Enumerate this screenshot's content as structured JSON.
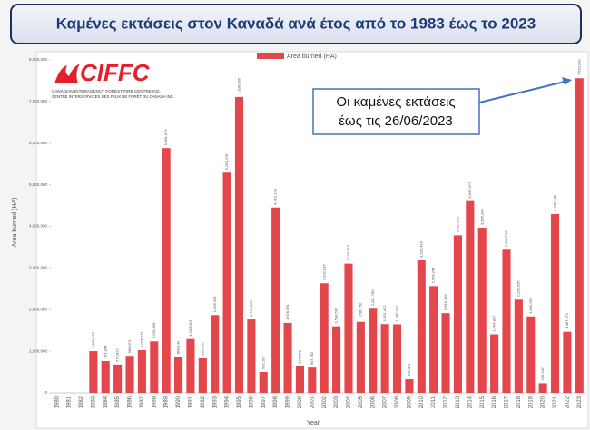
{
  "slide_title": "Καμένες εκτάσεις στον Καναδά ανά έτος από το 1983 έως το 2023",
  "logo": {
    "name": "CIFFC",
    "line1": "CANADIAN INTERAGENCY FOREST FIRE CENTRE INC.",
    "line2": "CENTRE INTERSERVICES DES FEUX DE FORÊT DU CANADA INC."
  },
  "chart_data": {
    "type": "bar",
    "legend": "Area burned (HA)",
    "y_label": "Area burned (HA)",
    "x_label": "Year",
    "annotation": [
      "Οι καμένες εκτάσεις",
      "έως τις 26/06/2023"
    ],
    "color": "#e4474b",
    "grid": false,
    "categories": [
      "1980",
      "1981",
      "1982",
      "1983",
      "1984",
      "1985",
      "1986",
      "1987",
      "1988",
      "1989",
      "1990",
      "1991",
      "1992",
      "1993",
      "1994",
      "1995",
      "1996",
      "1997",
      "1998",
      "1999",
      "2000",
      "2001",
      "2002",
      "2003",
      "2004",
      "2005",
      "2006",
      "2007",
      "2008",
      "2009",
      "2010",
      "2011",
      "2012",
      "2013",
      "2014",
      "2015",
      "2016",
      "2017",
      "2018",
      "2019",
      "2020",
      "2021",
      "2022",
      "2023"
    ],
    "values": [
      null,
      null,
      null,
      1001370,
      761954,
      678822,
      889073,
      1025271,
      1236658,
      5881075,
      868143,
      1292019,
      830166,
      1868336,
      5291378,
      7108886,
      1764250,
      502203,
      4452143,
      1678581,
      637966,
      607282,
      2632816,
      1598595,
      3103819,
      1706156,
      2021785,
      1651452,
      1645972,
      326425,
      3182416,
      2564264,
      1915129,
      3785220,
      4607677,
      3966336,
      1404827,
      3438768,
      2239635,
      1835953,
      230347,
      4296448,
      1467371,
      7560000
    ],
    "value_labels": [
      null,
      null,
      null,
      "1,001,370",
      "761,954",
      "678,822",
      "889,073",
      "1,025,271",
      "1,236,658",
      "5,881,075",
      "868,143",
      "1,292,019",
      "830,166",
      "1,868,336",
      "5,291,378",
      "7,108,886",
      "1,764,250",
      "502,203",
      "4,452,143",
      "1,678,581",
      "637,966",
      "607,282",
      "2,632,816",
      "1,598,595",
      "3,103,819",
      "1,706,156",
      "2,021,785",
      "1,651,452",
      "1,645,972",
      "326,425",
      "3,182,416",
      "2,564,264",
      "1,915,129",
      "3,785,220",
      "4,607,677",
      "3,966,336",
      "1,404,827",
      "3,438,768",
      "2,239,635",
      "1,835,953",
      "230,347",
      "4,296,448",
      "1,467,371",
      "7,560,000"
    ],
    "ylim": [
      0,
      8000000
    ],
    "yticks": [
      0,
      {
        "value": 1000000,
        "label": "1,000,000"
      },
      {
        "value": 2000000,
        "label": "2,000,000"
      },
      {
        "value": 3000000,
        "label": "3,000,000"
      },
      {
        "value": 4000000,
        "label": "4,000,000"
      },
      {
        "value": 5000000,
        "label": "5,000,000"
      },
      {
        "value": 6000000,
        "label": "6,000,000"
      },
      {
        "value": 7000000,
        "label": "7,000,000"
      },
      {
        "value": 8000000,
        "label": "8,000,000"
      }
    ]
  }
}
